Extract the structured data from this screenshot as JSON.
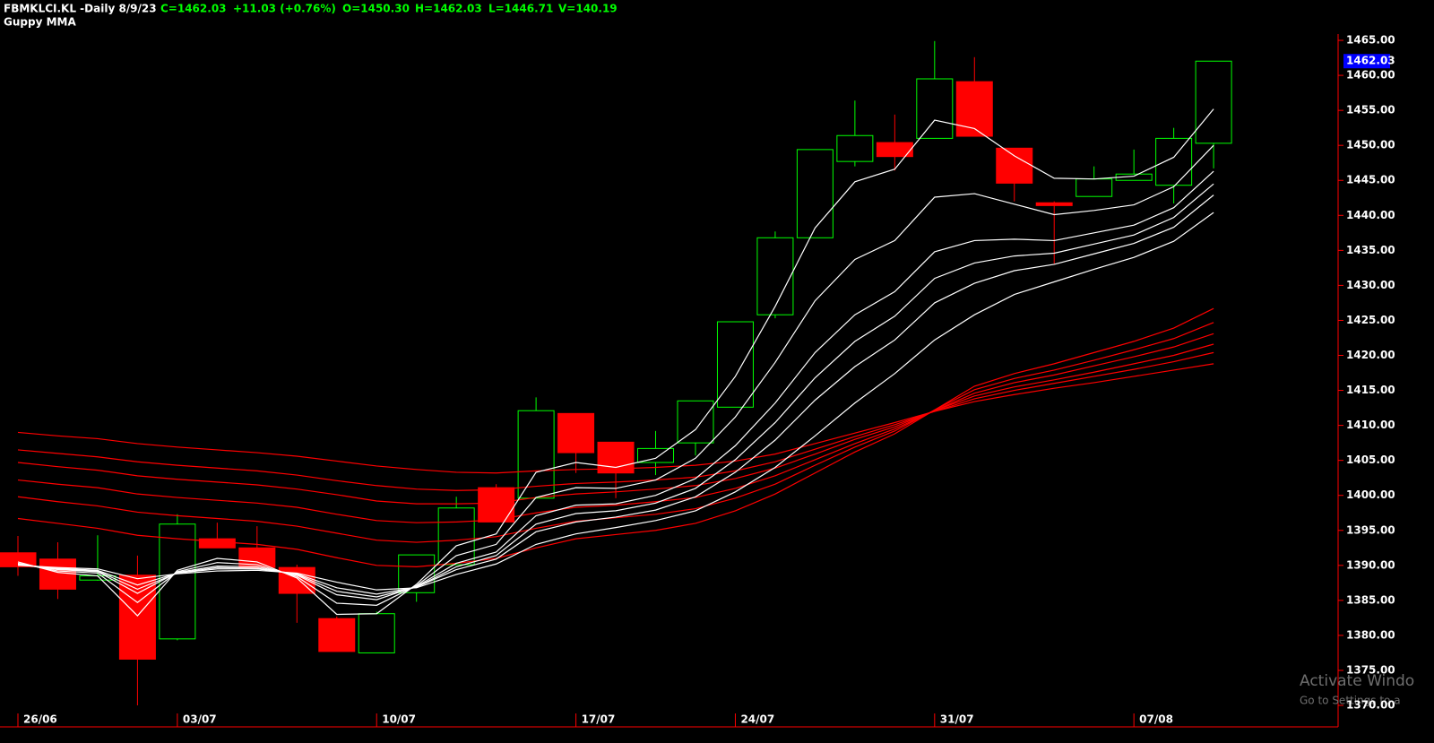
{
  "chart_data": {
    "type": "candlestick",
    "title": "FBMKLCI.KL -Daily  8/9/23",
    "subtitle": "Guppy MMA",
    "header_values": [
      "C=1462.03",
      "+11.03 (+0.76%)",
      "O=1450.30",
      "H=1462.03",
      "L=1446.71",
      "V=140.19"
    ],
    "header_color": "#00ff00",
    "categories": [
      "26/06",
      null,
      null,
      null,
      "03/07",
      null,
      null,
      null,
      null,
      "10/07",
      null,
      null,
      null,
      null,
      "17/07",
      null,
      null,
      null,
      "24/07",
      null,
      null,
      null,
      null,
      "31/07",
      null,
      null,
      null,
      null,
      "07/08",
      null,
      null
    ],
    "open": [
      1391.8,
      1390.9,
      1387.9,
      1388.6,
      1379.5,
      1393.8,
      1392.5,
      1389.7,
      1382.4,
      1377.5,
      1386.1,
      1390.1,
      1401.1,
      1399.6,
      1411.7,
      1407.6,
      1404.7,
      1407.5,
      1412.6,
      1425.8,
      1436.8,
      1447.7,
      1450.4,
      1451.0,
      1459.1,
      1449.6,
      1441.8,
      1442.7,
      1445.0,
      1444.3,
      1450.3
    ],
    "high": [
      1394.2,
      1393.3,
      1394.3,
      1391.4,
      1397.3,
      1396.1,
      1395.6,
      1390.1,
      1382.7,
      1383.4,
      1391.5,
      1399.8,
      1401.6,
      1414.0,
      1411.7,
      1407.6,
      1409.2,
      1413.5,
      1424.8,
      1437.7,
      1449.4,
      1456.4,
      1454.4,
      1464.9,
      1462.6,
      1449.6,
      1442.0,
      1447.0,
      1449.4,
      1452.5,
      1462.03
    ],
    "low": [
      1388.5,
      1385.2,
      1387.8,
      1370.0,
      1379.3,
      1392.5,
      1389.7,
      1381.8,
      1377.7,
      1377.5,
      1384.8,
      1390.1,
      1396.2,
      1399.6,
      1403.2,
      1399.6,
      1402.9,
      1405.7,
      1412.6,
      1425.3,
      1436.8,
      1447.0,
      1446.4,
      1451.0,
      1451.3,
      1442.0,
      1433.1,
      1442.7,
      1445.0,
      1441.7,
      1446.71
    ],
    "close": [
      1389.8,
      1386.6,
      1388.5,
      1376.6,
      1395.9,
      1392.5,
      1389.7,
      1386.0,
      1377.7,
      1383.1,
      1391.5,
      1398.2,
      1396.2,
      1412.1,
      1406.1,
      1403.2,
      1406.7,
      1413.5,
      1424.8,
      1436.8,
      1449.4,
      1451.4,
      1448.4,
      1459.5,
      1451.3,
      1444.6,
      1441.4,
      1445.2,
      1445.9,
      1451.0,
      1462.03
    ],
    "up_color": "#00ff00",
    "down_color": "#ff0000",
    "lines": [
      {
        "color": "#ff0000",
        "values": [
          1409.0,
          1408.5,
          1408.1,
          1407.4,
          1406.9,
          1406.5,
          1406.1,
          1405.6,
          1404.9,
          1404.2,
          1403.7,
          1403.3,
          1403.2,
          1403.5,
          1403.7,
          1403.8,
          1404.0,
          1404.3,
          1404.9,
          1405.9,
          1407.4,
          1408.9,
          1410.4,
          1412.0,
          1413.4,
          1414.4,
          1415.3,
          1416.1,
          1417.0,
          1417.9,
          1418.8
        ]
      },
      {
        "color": "#ff0000",
        "values": [
          1406.5,
          1406.0,
          1405.5,
          1404.8,
          1404.3,
          1403.9,
          1403.5,
          1402.9,
          1402.1,
          1401.4,
          1400.9,
          1400.7,
          1400.8,
          1401.3,
          1401.7,
          1401.9,
          1402.2,
          1402.6,
          1403.5,
          1404.8,
          1406.6,
          1408.4,
          1410.1,
          1412.0,
          1413.8,
          1415.0,
          1416.0,
          1417.0,
          1418.0,
          1419.1,
          1420.4
        ]
      },
      {
        "color": "#ff0000",
        "values": [
          1404.7,
          1404.1,
          1403.6,
          1402.8,
          1402.3,
          1401.9,
          1401.5,
          1400.9,
          1400.1,
          1399.2,
          1398.8,
          1398.8,
          1398.9,
          1399.7,
          1400.2,
          1400.5,
          1400.9,
          1401.4,
          1402.4,
          1403.9,
          1405.9,
          1408.0,
          1409.8,
          1412.1,
          1414.2,
          1415.5,
          1416.5,
          1417.6,
          1418.8,
          1420.0,
          1421.6
        ]
      },
      {
        "color": "#ff0000",
        "values": [
          1402.2,
          1401.6,
          1401.1,
          1400.2,
          1399.7,
          1399.3,
          1398.9,
          1398.3,
          1397.3,
          1396.4,
          1396.1,
          1396.2,
          1396.5,
          1397.5,
          1398.3,
          1398.6,
          1399.1,
          1399.7,
          1401.0,
          1402.8,
          1405.1,
          1407.4,
          1409.5,
          1412.1,
          1414.6,
          1416.1,
          1417.2,
          1418.5,
          1419.8,
          1421.2,
          1423.1
        ]
      },
      {
        "color": "#ff0000",
        "values": [
          1399.8,
          1399.1,
          1398.5,
          1397.6,
          1397.1,
          1396.7,
          1396.3,
          1395.6,
          1394.6,
          1393.6,
          1393.3,
          1393.6,
          1394.1,
          1395.3,
          1396.3,
          1396.8,
          1397.3,
          1398.1,
          1399.6,
          1401.6,
          1404.3,
          1406.9,
          1409.2,
          1412.2,
          1415.1,
          1416.7,
          1417.9,
          1419.3,
          1420.8,
          1422.4,
          1424.7
        ]
      },
      {
        "color": "#ff0000",
        "values": [
          1396.7,
          1396.0,
          1395.3,
          1394.3,
          1393.8,
          1393.4,
          1393.0,
          1392.3,
          1391.1,
          1390.0,
          1389.8,
          1390.3,
          1391.0,
          1392.5,
          1393.8,
          1394.4,
          1395.0,
          1396.0,
          1397.8,
          1400.2,
          1403.2,
          1406.2,
          1408.8,
          1412.2,
          1415.6,
          1417.4,
          1418.8,
          1420.4,
          1422.0,
          1423.9,
          1426.7
        ]
      },
      {
        "color": "#ffffff",
        "values": [
          1390.0,
          1389.7,
          1389.5,
          1388.1,
          1388.8,
          1389.2,
          1389.3,
          1388.9,
          1387.6,
          1386.5,
          1386.8,
          1388.7,
          1390.2,
          1393.0,
          1394.5,
          1395.4,
          1396.4,
          1397.8,
          1400.5,
          1404.0,
          1408.5,
          1413.2,
          1417.4,
          1422.2,
          1425.8,
          1428.7,
          1430.5,
          1432.3,
          1434.0,
          1436.3,
          1440.4
        ]
      },
      {
        "color": "#ffffff",
        "values": [
          1390.1,
          1389.6,
          1389.3,
          1387.2,
          1388.9,
          1389.5,
          1389.5,
          1388.8,
          1386.8,
          1385.9,
          1386.9,
          1389.4,
          1390.9,
          1394.8,
          1396.2,
          1396.9,
          1397.9,
          1399.8,
          1403.3,
          1407.9,
          1413.6,
          1418.4,
          1422.2,
          1427.5,
          1430.3,
          1432.1,
          1433.0,
          1434.5,
          1436.0,
          1438.3,
          1442.9
        ]
      },
      {
        "color": "#ffffff",
        "values": [
          1390.1,
          1389.5,
          1389.2,
          1386.6,
          1388.9,
          1389.7,
          1389.6,
          1388.7,
          1386.3,
          1385.5,
          1386.9,
          1389.8,
          1391.4,
          1395.9,
          1397.4,
          1397.8,
          1398.9,
          1401.0,
          1405.1,
          1410.4,
          1416.8,
          1422.0,
          1425.6,
          1431.0,
          1433.2,
          1434.2,
          1434.6,
          1435.9,
          1437.2,
          1439.7,
          1444.5
        ]
      },
      {
        "color": "#ffffff",
        "values": [
          1390.2,
          1389.4,
          1389.1,
          1386.0,
          1389.0,
          1389.9,
          1389.8,
          1388.6,
          1385.8,
          1385.1,
          1387.0,
          1390.3,
          1391.9,
          1397.1,
          1398.6,
          1398.8,
          1400.0,
          1402.4,
          1407.1,
          1413.2,
          1420.4,
          1425.8,
          1429.1,
          1434.8,
          1436.4,
          1436.6,
          1436.4,
          1437.5,
          1438.6,
          1441.1,
          1446.3
        ]
      },
      {
        "color": "#ffffff",
        "values": [
          1390.3,
          1389.2,
          1388.9,
          1384.7,
          1389.1,
          1390.4,
          1390.1,
          1388.4,
          1384.6,
          1384.3,
          1387.1,
          1391.4,
          1393.0,
          1399.7,
          1401.1,
          1401.0,
          1402.2,
          1405.3,
          1411.2,
          1419.0,
          1427.8,
          1433.7,
          1436.4,
          1442.6,
          1443.1,
          1441.6,
          1440.1,
          1440.7,
          1441.5,
          1444.1,
          1450.0
        ]
      },
      {
        "color": "#ffffff",
        "values": [
          1390.5,
          1389.0,
          1388.5,
          1382.8,
          1389.3,
          1391.0,
          1390.5,
          1388.2,
          1383.0,
          1383.1,
          1387.3,
          1392.8,
          1394.5,
          1403.3,
          1404.7,
          1404.0,
          1405.3,
          1409.4,
          1417.0,
          1427.0,
          1438.2,
          1444.8,
          1446.6,
          1453.6,
          1452.4,
          1448.5,
          1445.3,
          1445.2,
          1445.6,
          1448.3,
          1455.2
        ]
      }
    ],
    "ylim": [
      1367.7,
      1465.9
    ],
    "yticks": [
      {
        "value": 1370,
        "label": "1370.00"
      },
      {
        "value": 1375,
        "label": "1375.00"
      },
      {
        "value": 1380,
        "label": "1380.00"
      },
      {
        "value": 1385,
        "label": "1385.00"
      },
      {
        "value": 1390,
        "label": "1390.00"
      },
      {
        "value": 1395,
        "label": "1395.00"
      },
      {
        "value": 1400,
        "label": "1400.00"
      },
      {
        "value": 1405,
        "label": "1405.00"
      },
      {
        "value": 1410,
        "label": "1410.00"
      },
      {
        "value": 1415,
        "label": "1415.00"
      },
      {
        "value": 1420,
        "label": "1420.00"
      },
      {
        "value": 1425,
        "label": "1425.00"
      },
      {
        "value": 1430,
        "label": "1430.00"
      },
      {
        "value": 1435,
        "label": "1435.00"
      },
      {
        "value": 1440,
        "label": "1440.00"
      },
      {
        "value": 1445,
        "label": "1445.00"
      },
      {
        "value": 1450,
        "label": "1450.00"
      },
      {
        "value": 1455,
        "label": "1455.00"
      },
      {
        "value": 1460,
        "label": "1460.00"
      },
      {
        "value": 1465,
        "label": "1465.00"
      }
    ],
    "last_price": 1462.03,
    "last_price_color": "#0000ff"
  },
  "watermark": {
    "title": "Activate Windo",
    "subtitle": "Go to Settings to a"
  }
}
